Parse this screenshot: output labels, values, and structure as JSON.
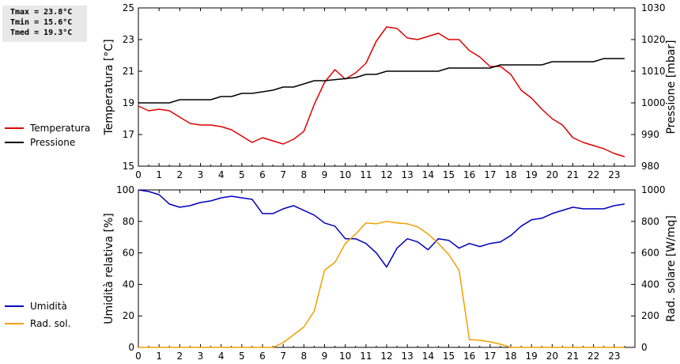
{
  "stats": {
    "tmax": "Tmax = 23.8°C",
    "tmin": "Tmin = 15.6°C",
    "tmed": "Tmed = 19.3°C"
  },
  "colors": {
    "temperature": "#dd0000",
    "pressure": "#000000",
    "humidity": "#0000bb",
    "solar": "#f0a000"
  },
  "chart_data": [
    {
      "type": "line",
      "x_ticks": [
        0,
        1,
        2,
        3,
        4,
        5,
        6,
        7,
        8,
        9,
        10,
        11,
        12,
        13,
        14,
        15,
        16,
        17,
        18,
        19,
        20,
        21,
        22,
        23
      ],
      "xlim": [
        0,
        24
      ],
      "ylabel_left": "Temperatura [°C]",
      "ylabel_right": "Pressione [mbar]",
      "ylim_left": [
        15,
        25
      ],
      "ylim_right": [
        980,
        1030
      ],
      "y_ticks_left": [
        15,
        17,
        19,
        21,
        23,
        25
      ],
      "y_ticks_right": [
        980,
        990,
        1000,
        1010,
        1020,
        1030
      ],
      "legend": [
        "Temperatura",
        "Pressione"
      ],
      "series": [
        {
          "name": "Temperatura",
          "axis": "left",
          "x": [
            0,
            0.5,
            1,
            1.5,
            2,
            2.5,
            3,
            3.5,
            4,
            4.5,
            5,
            5.5,
            6,
            6.5,
            7,
            7.5,
            8,
            8.5,
            9,
            9.5,
            10,
            10.5,
            11,
            11.5,
            12,
            12.5,
            13,
            13.5,
            14,
            14.5,
            15,
            15.5,
            16,
            16.5,
            17,
            17.5,
            18,
            18.5,
            19,
            19.5,
            20,
            20.5,
            21,
            21.5,
            22,
            22.5,
            23,
            23.5
          ],
          "values": [
            18.8,
            18.5,
            18.6,
            18.5,
            18.1,
            17.7,
            17.6,
            17.6,
            17.5,
            17.3,
            16.9,
            16.5,
            16.8,
            16.6,
            16.4,
            16.7,
            17.2,
            18.9,
            20.3,
            21.1,
            20.5,
            20.9,
            21.5,
            22.9,
            23.8,
            23.7,
            23.1,
            23.0,
            23.2,
            23.4,
            23.0,
            23.0,
            22.3,
            21.9,
            21.3,
            21.3,
            20.8,
            19.8,
            19.3,
            18.6,
            18.0,
            17.6,
            16.8,
            16.5,
            16.3,
            16.1,
            15.8,
            15.6
          ]
        },
        {
          "name": "Pressione",
          "axis": "right",
          "x": [
            0,
            1.5,
            2,
            3.5,
            4,
            4.5,
            5,
            5.5,
            6.5,
            7,
            7.5,
            8,
            8.5,
            9,
            10.5,
            11,
            11.5,
            12,
            14.5,
            15,
            17,
            17.5,
            19.5,
            20,
            22,
            22.5,
            23.5
          ],
          "values": [
            1000,
            1000,
            1001,
            1001,
            1002,
            1002,
            1003,
            1003,
            1004,
            1005,
            1005,
            1006,
            1007,
            1007,
            1008,
            1009,
            1009,
            1010,
            1010,
            1011,
            1011,
            1012,
            1012,
            1013,
            1013,
            1014,
            1014
          ]
        }
      ]
    },
    {
      "type": "line",
      "x_ticks": [
        0,
        1,
        2,
        3,
        4,
        5,
        6,
        7,
        8,
        9,
        10,
        11,
        12,
        13,
        14,
        15,
        16,
        17,
        18,
        19,
        20,
        21,
        22,
        23
      ],
      "xlim": [
        0,
        24
      ],
      "ylabel_left": "Umidità relativa [%]",
      "ylabel_right": "Rad. solare [W/mq]",
      "ylim_left": [
        0,
        100
      ],
      "ylim_right": [
        0,
        1000
      ],
      "y_ticks_left": [
        0,
        20,
        40,
        60,
        80,
        100
      ],
      "y_ticks_right": [
        0,
        200,
        400,
        600,
        800,
        1000
      ],
      "legend": [
        "Umidità",
        "Rad. sol."
      ],
      "series": [
        {
          "name": "Umidità",
          "axis": "left",
          "x": [
            0,
            0.5,
            1,
            1.5,
            2,
            2.5,
            3,
            3.5,
            4,
            4.5,
            5,
            5.5,
            6,
            6.5,
            7,
            7.5,
            8,
            8.5,
            9,
            9.5,
            10,
            10.5,
            11,
            11.5,
            12,
            12.5,
            13,
            13.5,
            14,
            14.5,
            15,
            15.5,
            16,
            16.5,
            17,
            17.5,
            18,
            18.5,
            19,
            19.5,
            20,
            20.5,
            21,
            21.5,
            22,
            22.5,
            23,
            23.5
          ],
          "values": [
            100,
            99,
            97,
            91,
            89,
            90,
            92,
            93,
            95,
            96,
            95,
            94,
            85,
            85,
            88,
            90,
            87,
            84,
            79,
            77,
            69,
            69,
            66,
            60,
            51,
            63,
            69,
            67,
            62,
            69,
            68,
            63,
            66,
            64,
            66,
            67,
            71,
            77,
            81,
            82,
            85,
            87,
            89,
            88,
            88,
            88,
            90,
            91
          ]
        },
        {
          "name": "Rad. sol.",
          "axis": "right",
          "x": [
            0,
            6.5,
            7,
            7.5,
            8,
            8.5,
            9,
            9.5,
            10,
            10.5,
            11,
            11.5,
            12,
            12.5,
            13,
            13.5,
            14,
            14.5,
            15,
            15.5,
            16,
            16.5,
            17,
            17.5,
            18,
            23.5
          ],
          "values": [
            0,
            0,
            30,
            80,
            130,
            230,
            490,
            540,
            660,
            720,
            790,
            785,
            800,
            790,
            785,
            765,
            720,
            660,
            590,
            490,
            50,
            45,
            35,
            20,
            0,
            0
          ]
        }
      ]
    }
  ]
}
